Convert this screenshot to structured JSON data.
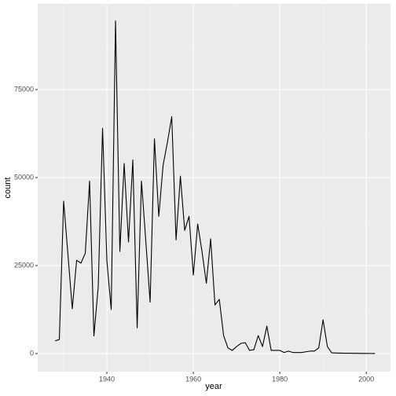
{
  "chart_data": {
    "type": "line",
    "x_label": "year",
    "y_label": "count",
    "x": [
      1928,
      1929,
      1930,
      1931,
      1932,
      1933,
      1934,
      1935,
      1936,
      1937,
      1938,
      1939,
      1940,
      1941,
      1942,
      1943,
      1944,
      1945,
      1946,
      1947,
      1948,
      1949,
      1950,
      1951,
      1952,
      1953,
      1954,
      1955,
      1956,
      1957,
      1958,
      1959,
      1960,
      1961,
      1962,
      1963,
      1964,
      1965,
      1966,
      1967,
      1968,
      1969,
      1970,
      1971,
      1972,
      1973,
      1974,
      1975,
      1976,
      1977,
      1978,
      1979,
      1980,
      1981,
      1982,
      1983,
      1984,
      1985,
      1986,
      1987,
      1988,
      1989,
      1990,
      1991,
      1992,
      1993,
      1994,
      1995,
      1996,
      1997,
      1998,
      1999,
      2000,
      2001,
      2002
    ],
    "values": [
      3600,
      4000,
      43300,
      28000,
      12700,
      26500,
      25700,
      28500,
      49000,
      5000,
      19000,
      64000,
      26300,
      12500,
      94500,
      29000,
      54000,
      31700,
      55000,
      7300,
      49000,
      32000,
      14600,
      61000,
      39000,
      53500,
      60000,
      67300,
      32300,
      50400,
      35000,
      39000,
      22300,
      36800,
      29000,
      20000,
      32600,
      13800,
      15400,
      5100,
      1600,
      900,
      2000,
      2900,
      3100,
      900,
      1100,
      5100,
      2000,
      7800,
      900,
      900,
      900,
      300,
      700,
      300,
      300,
      300,
      500,
      700,
      700,
      1600,
      9600,
      2000,
      200,
      150,
      120,
      100,
      100,
      80,
      60,
      50,
      40,
      30,
      20
    ],
    "color": "#000000",
    "xlim": [
      1924,
      2005.6
    ],
    "ylim": [
      -5134,
      99330
    ],
    "xticks": [
      1940,
      1960,
      1980,
      2000
    ],
    "yticks": [
      0,
      25000,
      50000,
      75000
    ],
    "grid": true
  }
}
